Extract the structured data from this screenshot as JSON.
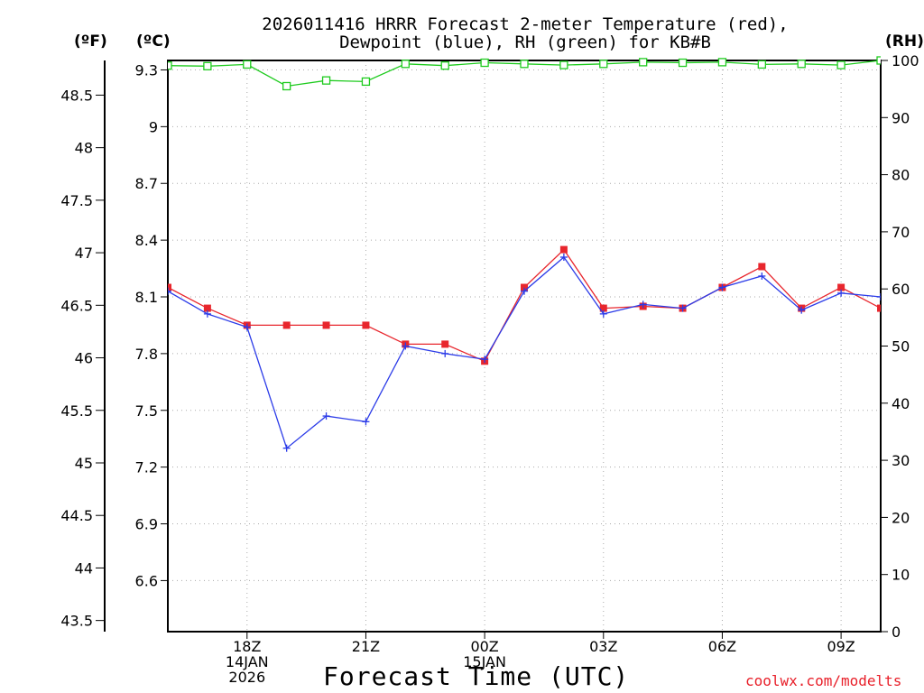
{
  "chart_data": {
    "type": "line",
    "title_line1": "2026011416 HRRR Forecast 2-meter Temperature (red),",
    "title_line2": "Dewpoint (blue), RH (green) for KB#B",
    "xlabel": "Forecast Time (UTC)",
    "left_outer_axis_label": "(ºF)",
    "left_inner_axis_label": "(ºC)",
    "right_axis_label": "(RH)",
    "x_hours": [
      16,
      17,
      18,
      19,
      20,
      21,
      22,
      23,
      24,
      25,
      26,
      27,
      28,
      29,
      30,
      31,
      32,
      33,
      34
    ],
    "xlim": [
      16,
      34
    ],
    "x_ticks": [
      {
        "hour": 18,
        "lines": [
          "18Z",
          "14JAN",
          "2026"
        ]
      },
      {
        "hour": 21,
        "lines": [
          "21Z"
        ]
      },
      {
        "hour": 24,
        "lines": [
          "00Z",
          "15JAN"
        ]
      },
      {
        "hour": 27,
        "lines": [
          "03Z"
        ]
      },
      {
        "hour": 30,
        "lines": [
          "06Z"
        ]
      },
      {
        "hour": 33,
        "lines": [
          "09Z"
        ]
      }
    ],
    "celsius_axis": {
      "ylim": [
        6.33,
        9.35
      ],
      "ticks": [
        "6.6",
        "6.9",
        "7.2",
        "7.5",
        "7.8",
        "8.1",
        "8.4",
        "8.7",
        "9",
        "9.3"
      ]
    },
    "fahrenheit_axis": {
      "ticks": [
        "43.5",
        "44",
        "44.5",
        "45",
        "45.5",
        "46",
        "46.5",
        "47",
        "47.5",
        "48",
        "48.5"
      ]
    },
    "rh_axis": {
      "ylim": [
        0,
        100
      ],
      "ticks": [
        "0",
        "10",
        "20",
        "30",
        "40",
        "50",
        "60",
        "70",
        "80",
        "90",
        "100"
      ]
    },
    "series": [
      {
        "name": "Temperature",
        "color": "#e8262d",
        "marker": "filled-square",
        "axis": "celsius",
        "values": [
          8.15,
          8.04,
          7.95,
          7.95,
          7.95,
          7.95,
          7.85,
          7.85,
          7.76,
          8.15,
          8.35,
          8.04,
          8.05,
          8.04,
          8.15,
          8.26,
          8.04,
          8.15,
          8.04
        ]
      },
      {
        "name": "Dewpoint",
        "color": "#2b3be8",
        "marker": "plus",
        "axis": "celsius",
        "values": [
          8.13,
          8.01,
          7.94,
          7.3,
          7.47,
          7.44,
          7.84,
          7.8,
          7.77,
          8.13,
          8.31,
          8.01,
          8.06,
          8.04,
          8.15,
          8.21,
          8.03,
          8.12,
          8.1
        ]
      },
      {
        "name": "RH",
        "color": "#1ecb1e",
        "marker": "open-square",
        "axis": "rh",
        "values": [
          99.1,
          99.0,
          99.3,
          95.5,
          96.5,
          96.3,
          99.4,
          99.1,
          99.6,
          99.4,
          99.2,
          99.4,
          99.7,
          99.6,
          99.7,
          99.3,
          99.4,
          99.2,
          100
        ]
      }
    ]
  },
  "credit": "coolwx.com/modelts"
}
